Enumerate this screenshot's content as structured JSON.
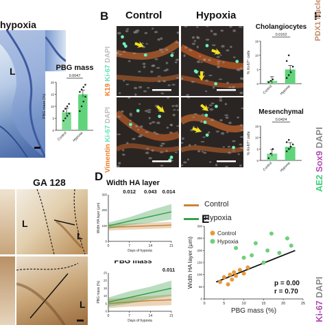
{
  "panel_letters": {
    "b": "B",
    "d": "D",
    "e": "E",
    "f": "F"
  },
  "panel_a": {
    "title_fragment": "hypoxia",
    "lumen_marker": "L"
  },
  "panel_b": {
    "col_control": "Control",
    "col_hypoxia": "Hypoxia",
    "stain_top_k19": "K19",
    "stain_top_ki67": "Ki-67",
    "stain_top_dapi": "DAPI",
    "stain_bot_vimentin": "Vimentin",
    "stain_bot_ki67": "Ki-67",
    "stain_bot_dapi": "DAPI"
  },
  "panel_c_lower": {
    "ga_label": "GA 128",
    "lumen_marker": "L"
  },
  "panel_f": {
    "stain_ae2": "AE2",
    "stain_sox9": "Sox9",
    "stain_dapi": "DAPI",
    "stain_ki67": "Ki-67",
    "stain_dapi2": "DAPI",
    "top_fragment": "PDX1 Nuclei"
  },
  "colors": {
    "control": "#c8843a",
    "hypoxia": "#3a9e4a",
    "bar_hypoxia": "#5fd47a",
    "bar_control": "#7ddc91",
    "dapi_text": "#cfcfcf",
    "ki67_text": "#61e3b4",
    "k19_text": "#f07a25"
  },
  "chart_data": [
    {
      "type": "bar",
      "title": "PBG mass",
      "ylabel": "PBG mass (%)",
      "categories": [
        "Control",
        "Hypoxia"
      ],
      "values": [
        7.5,
        15
      ],
      "ylim": [
        0,
        20
      ],
      "yticks": [
        "0",
        "5",
        "10",
        "15",
        "20"
      ],
      "annotation": "0.0047",
      "points": [
        [
          4,
          5,
          6,
          7,
          8,
          9,
          10,
          11
        ],
        [
          8,
          10,
          12,
          14,
          16,
          17,
          18,
          19
        ]
      ]
    },
    {
      "type": "bar",
      "title": "Cholangiocytes",
      "ylabel": "% Ki-67⁺ cells",
      "categories": [
        "Control",
        "Hypoxia"
      ],
      "values": [
        1,
        5
      ],
      "ylim": [
        0,
        15
      ],
      "yticks": [
        "0",
        "5",
        "10",
        "15"
      ],
      "annotation": "0.0162",
      "points": [
        [
          0.5,
          1,
          1.5
        ],
        [
          2,
          3,
          4,
          6,
          8,
          10
        ]
      ]
    },
    {
      "type": "bar",
      "title": "Mesenchymal",
      "ylabel": "% Ki-67⁺ cells",
      "categories": [
        "Control",
        "Hypoxia"
      ],
      "values": [
        3,
        6
      ],
      "ylim": [
        0,
        15
      ],
      "yticks": [
        "0",
        "5",
        "10",
        "15"
      ],
      "annotation": "0.0424",
      "points": [
        [
          1,
          3,
          5
        ],
        [
          4,
          5,
          6,
          7,
          8,
          9
        ]
      ]
    },
    {
      "type": "area",
      "title": "Width HA layer",
      "ylabel": "Width HA layer (μm)",
      "xlabel": "Days of hypoxia",
      "x": [
        0,
        7,
        14,
        21
      ],
      "xticks": [
        "0",
        "7",
        "14",
        "21"
      ],
      "ylim": [
        0,
        300
      ],
      "yticks": [
        "0",
        "100",
        "200",
        "300"
      ],
      "annotations": [
        {
          "x": 7,
          "text": "0.012"
        },
        {
          "x": 14,
          "text": "0.043"
        },
        {
          "x": 21,
          "text": "0.014"
        }
      ],
      "series": [
        {
          "name": "Control",
          "values": [
            90,
            95,
            100,
            105
          ],
          "lower": [
            70,
            75,
            80,
            85
          ],
          "upper": [
            110,
            115,
            120,
            125
          ]
        },
        {
          "name": "Hypoxia",
          "values": [
            100,
            130,
            160,
            190
          ],
          "lower": [
            80,
            105,
            120,
            140
          ],
          "upper": [
            120,
            155,
            200,
            240
          ]
        }
      ],
      "legend": [
        "Control",
        "Hypoxia"
      ]
    },
    {
      "type": "area",
      "title": "PBG mass",
      "ylabel": "PBG mass (%)",
      "xlabel": "Days of hypoxia",
      "x": [
        0,
        7,
        14,
        21
      ],
      "xticks": [
        "0",
        "7",
        "14",
        "21"
      ],
      "ylim": [
        0,
        25
      ],
      "yticks": [
        "0",
        "5",
        "10",
        "15",
        "20",
        "25"
      ],
      "annotations": [
        {
          "x": 21,
          "text": "0.011"
        }
      ],
      "series": [
        {
          "name": "Control",
          "values": [
            5,
            6,
            7,
            7.5
          ],
          "lower": [
            2,
            3,
            3.5,
            4
          ],
          "upper": [
            8,
            9,
            10,
            11
          ]
        },
        {
          "name": "Hypoxia",
          "values": [
            6,
            9,
            12,
            15
          ],
          "lower": [
            3,
            5,
            8,
            10
          ],
          "upper": [
            9,
            13,
            16,
            20
          ]
        }
      ]
    },
    {
      "type": "scatter",
      "xlabel": "PBG mass (%)",
      "ylabel": "Width HA layer (μm)",
      "xlim": [
        0,
        25
      ],
      "ylim": [
        0,
        300
      ],
      "xticks": [
        "0",
        "5",
        "10",
        "15",
        "20",
        "25"
      ],
      "yticks": [
        "0",
        "50",
        "100",
        "150",
        "200",
        "250",
        "300"
      ],
      "legend": [
        "Control",
        "Hypoxia"
      ],
      "stats": [
        "p = 0.00",
        "r = 0.70"
      ],
      "series": [
        {
          "name": "Control",
          "x": [
            4,
            5,
            6,
            6.5,
            7,
            7.5,
            8,
            9,
            10,
            11
          ],
          "y": [
            70,
            90,
            60,
            100,
            80,
            110,
            95,
            120,
            105,
            130
          ]
        },
        {
          "name": "Hypoxia",
          "x": [
            8,
            10,
            12,
            13,
            15,
            16,
            17,
            19,
            21,
            22
          ],
          "y": [
            210,
            170,
            180,
            230,
            150,
            200,
            270,
            190,
            250,
            220
          ]
        }
      ],
      "fit": {
        "x": [
          3,
          23
        ],
        "y": [
          70,
          200
        ]
      }
    }
  ]
}
